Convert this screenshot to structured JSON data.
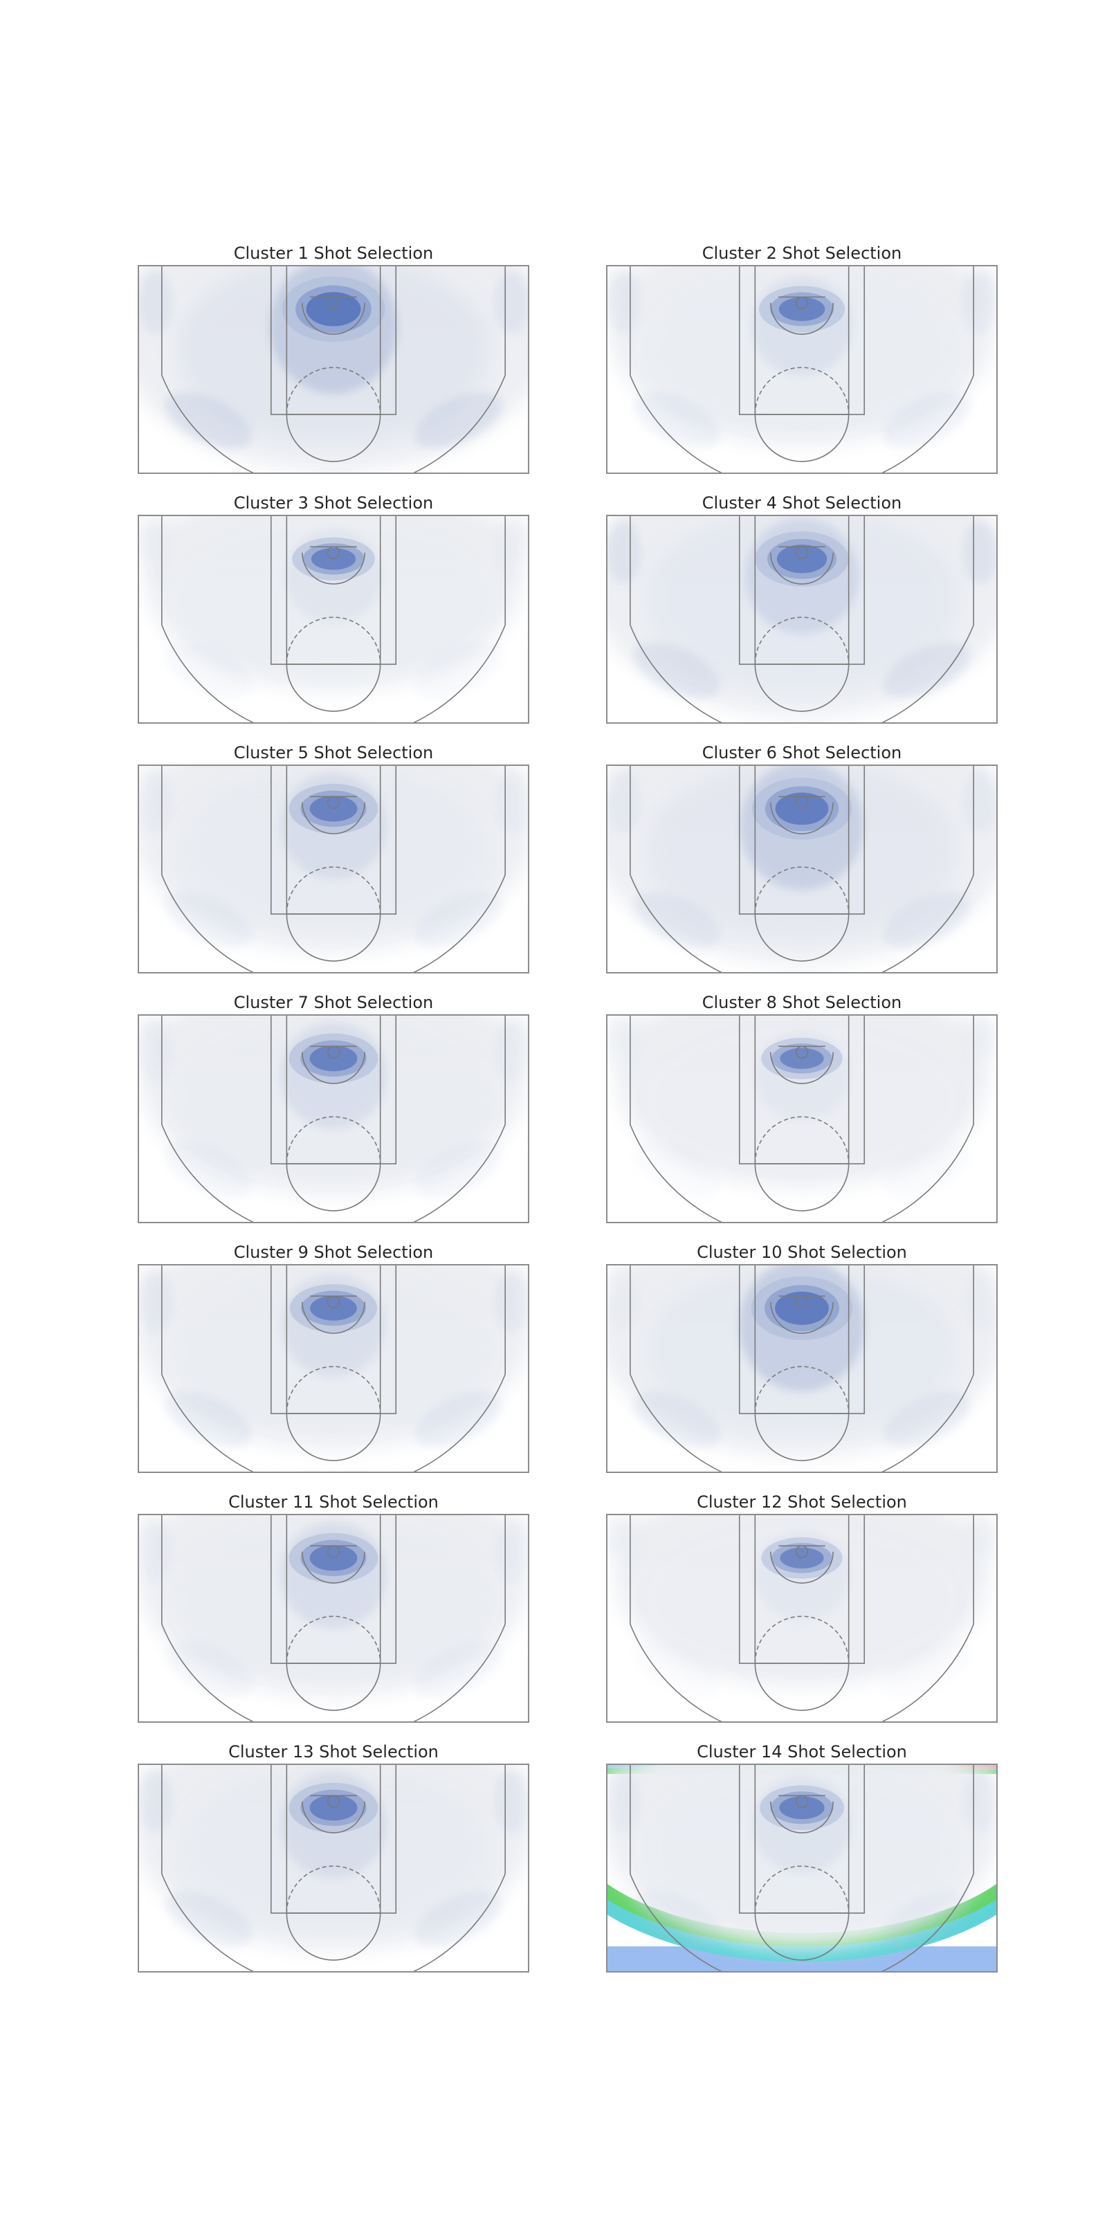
{
  "chart_data": {
    "type": "heatmap",
    "subtype": "kde-density-on-half-court",
    "layout": {
      "rows": 7,
      "cols": 2
    },
    "court": {
      "x_range": [
        -250,
        250
      ],
      "y_range": [
        -47.5,
        217.5
      ],
      "units": "tenths of feet from hoop"
    },
    "colors": {
      "density_light": "#eceef2",
      "density_mid": "#b3c0dc",
      "density_dark": "#5b78bd",
      "court_line": "#7a7a7a",
      "border": "#8c8c8c"
    },
    "panels": [
      {
        "title": "Cluster 1 Shot Selection",
        "spread": 1.0,
        "rim": 1.0,
        "paint": 0.9,
        "corner3": 0.35,
        "wing3": 0.55,
        "top3": 0.45,
        "midrange": 0.75
      },
      {
        "title": "Cluster 2 Shot Selection",
        "spread": 0.45,
        "rim": 0.8,
        "paint": 0.35,
        "corner3": 0.25,
        "wing3": 0.3,
        "top3": 0.25,
        "midrange": 0.15
      },
      {
        "title": "Cluster 3 Shot Selection",
        "spread": 0.35,
        "rim": 0.8,
        "paint": 0.25,
        "corner3": 0.1,
        "wing3": 0.15,
        "top3": 0.15,
        "midrange": 0.1
      },
      {
        "title": "Cluster 4 Shot Selection",
        "spread": 0.9,
        "rim": 0.85,
        "paint": 0.6,
        "corner3": 0.4,
        "wing3": 0.45,
        "top3": 0.35,
        "midrange": 0.5
      },
      {
        "title": "Cluster 5 Shot Selection",
        "spread": 0.6,
        "rim": 0.85,
        "paint": 0.45,
        "corner3": 0.15,
        "wing3": 0.25,
        "top3": 0.2,
        "midrange": 0.3
      },
      {
        "title": "Cluster 6 Shot Selection",
        "spread": 0.85,
        "rim": 0.9,
        "paint": 0.8,
        "corner3": 0.2,
        "wing3": 0.35,
        "top3": 0.3,
        "midrange": 0.55
      },
      {
        "title": "Cluster 7 Shot Selection",
        "spread": 0.45,
        "rim": 0.85,
        "paint": 0.45,
        "corner3": 0.15,
        "wing3": 0.2,
        "top3": 0.15,
        "midrange": 0.2
      },
      {
        "title": "Cluster 8 Shot Selection",
        "spread": 0.3,
        "rim": 0.75,
        "paint": 0.2,
        "corner3": 0.05,
        "wing3": 0.1,
        "top3": 0.08,
        "midrange": 0.05
      },
      {
        "title": "Cluster 9 Shot Selection",
        "spread": 0.55,
        "rim": 0.85,
        "paint": 0.4,
        "corner3": 0.25,
        "wing3": 0.35,
        "top3": 0.2,
        "midrange": 0.2
      },
      {
        "title": "Cluster 10 Shot Selection",
        "spread": 0.7,
        "rim": 0.95,
        "paint": 0.85,
        "corner3": 0.1,
        "wing3": 0.35,
        "top3": 0.2,
        "midrange": 0.45
      },
      {
        "title": "Cluster 11 Shot Selection",
        "spread": 0.5,
        "rim": 0.85,
        "paint": 0.45,
        "corner3": 0.15,
        "wing3": 0.2,
        "top3": 0.15,
        "midrange": 0.2
      },
      {
        "title": "Cluster 12 Shot Selection",
        "spread": 0.3,
        "rim": 0.75,
        "paint": 0.2,
        "corner3": 0.05,
        "wing3": 0.08,
        "top3": 0.05,
        "midrange": 0.05
      },
      {
        "title": "Cluster 13 Shot Selection",
        "spread": 0.6,
        "rim": 0.85,
        "paint": 0.45,
        "corner3": 0.3,
        "wing3": 0.35,
        "top3": 0.25,
        "midrange": 0.3
      },
      {
        "title": "Cluster 14 Shot Selection",
        "spread": 0.55,
        "rim": 0.8,
        "paint": 0.3,
        "corner3": 0.2,
        "wing3": 0.25,
        "top3": 0.2,
        "midrange": 0.15,
        "artifact_bands": [
          "#7ec8f0",
          "#5fd4d8",
          "#63d46a",
          "#9bbcf0",
          "#d8a8a8"
        ]
      }
    ]
  }
}
